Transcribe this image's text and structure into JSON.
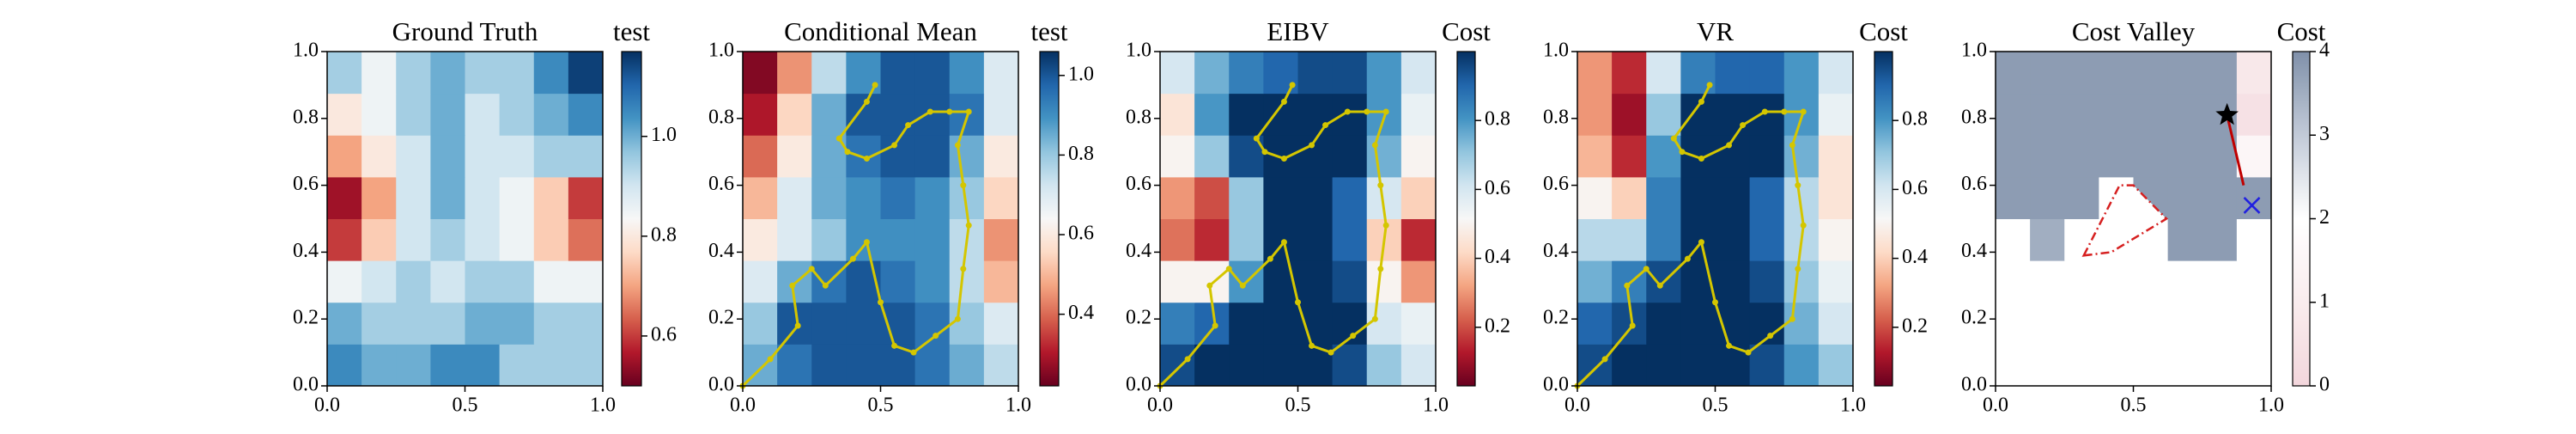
{
  "chart_data": [
    {
      "type": "heatmap",
      "title": "Ground Truth",
      "colorbar_label": "test",
      "colormap": "RdBu",
      "xlim": [
        0,
        1
      ],
      "ylim": [
        0,
        1
      ],
      "xticks": [
        {
          "value": 0,
          "label": "0.0"
        },
        0.5,
        {
          "value": 1,
          "label": "1.0"
        }
      ],
      "yticks": [
        {
          "value": 0,
          "label": "0.0"
        },
        0.2,
        0.4,
        0.6,
        0.8,
        {
          "value": 1,
          "label": "1.0"
        }
      ],
      "clim": [
        0.5,
        1.17
      ],
      "cticks": [
        0.6,
        0.8,
        {
          "value": 1,
          "label": "1.0"
        }
      ],
      "z": [
        [
          1.05,
          1.0,
          1.0,
          1.05,
          1.05,
          0.95,
          0.95,
          0.95
        ],
        [
          1.0,
          0.95,
          0.95,
          0.95,
          1.0,
          1.0,
          0.95,
          0.95
        ],
        [
          0.85,
          0.9,
          0.95,
          0.9,
          0.95,
          0.95,
          0.85,
          0.85
        ],
        [
          0.6,
          0.75,
          0.9,
          0.95,
          0.9,
          0.85,
          0.75,
          0.65
        ],
        [
          0.55,
          0.7,
          0.9,
          1.0,
          0.9,
          0.85,
          0.75,
          0.6
        ],
        [
          0.7,
          0.8,
          0.9,
          1.0,
          0.9,
          0.9,
          0.95,
          0.95
        ],
        [
          0.8,
          0.85,
          0.95,
          1.0,
          0.9,
          0.95,
          1.0,
          1.05
        ],
        [
          0.95,
          0.85,
          0.95,
          1.0,
          0.95,
          0.95,
          1.05,
          1.15
        ]
      ]
    },
    {
      "type": "heatmap",
      "title": "Conditional Mean",
      "colorbar_label": "test",
      "colormap": "RdBu",
      "xlim": [
        0,
        1
      ],
      "ylim": [
        0,
        1
      ],
      "xticks": [
        {
          "value": 0,
          "label": "0.0"
        },
        0.5,
        {
          "value": 1,
          "label": "1.0"
        }
      ],
      "yticks": [
        {
          "value": 0,
          "label": "0.0"
        },
        0.2,
        0.4,
        0.6,
        0.8,
        {
          "value": 1,
          "label": "1.0"
        }
      ],
      "clim": [
        0.22,
        1.06
      ],
      "cticks": [
        0.4,
        0.6,
        0.8,
        {
          "value": 1,
          "label": "1.0"
        }
      ],
      "z": [
        [
          0.85,
          0.95,
          1.0,
          1.0,
          1.0,
          0.95,
          0.85,
          0.75
        ],
        [
          0.8,
          1.0,
          1.0,
          1.0,
          1.0,
          0.95,
          0.8,
          0.7
        ],
        [
          0.7,
          0.85,
          0.95,
          1.0,
          0.95,
          0.9,
          0.75,
          0.5
        ],
        [
          0.6,
          0.7,
          0.8,
          0.9,
          0.9,
          0.9,
          0.75,
          0.45
        ],
        [
          0.5,
          0.7,
          0.85,
          0.9,
          0.95,
          0.9,
          0.8,
          0.55
        ],
        [
          0.4,
          0.6,
          0.85,
          0.95,
          1.0,
          1.0,
          0.85,
          0.6
        ],
        [
          0.3,
          0.55,
          0.85,
          1.0,
          1.0,
          1.0,
          0.95,
          0.7
        ],
        [
          0.25,
          0.45,
          0.75,
          0.9,
          1.0,
          1.0,
          0.9,
          0.7
        ]
      ],
      "path": {
        "color": "#d4c600",
        "x": [
          0,
          0.1,
          0.2,
          0.18,
          0.25,
          0.3,
          0.4,
          0.45,
          0.5,
          0.55,
          0.62,
          0.7,
          0.78,
          0.8,
          0.82,
          0.8,
          0.78,
          0.82,
          0.75,
          0.68,
          0.6,
          0.55,
          0.45,
          0.38,
          0.35,
          0.45,
          0.48
        ],
        "y": [
          0,
          0.08,
          0.18,
          0.3,
          0.35,
          0.3,
          0.38,
          0.43,
          0.25,
          0.12,
          0.1,
          0.15,
          0.2,
          0.35,
          0.48,
          0.6,
          0.72,
          0.82,
          0.82,
          0.82,
          0.78,
          0.72,
          0.68,
          0.7,
          0.74,
          0.85,
          0.9
        ]
      }
    },
    {
      "type": "heatmap",
      "title": "EIBV",
      "colorbar_label": "Cost",
      "colormap": "RdBu",
      "xlim": [
        0,
        1
      ],
      "ylim": [
        0,
        1
      ],
      "xticks": [
        {
          "value": 0,
          "label": "0.0"
        },
        0.5,
        {
          "value": 1,
          "label": "1.0"
        }
      ],
      "yticks": [
        {
          "value": 0,
          "label": "0.0"
        },
        0.2,
        0.4,
        0.6,
        0.8,
        {
          "value": 1,
          "label": "1.0"
        }
      ],
      "clim": [
        0.03,
        1
      ],
      "cticks": [
        0.2,
        0.4,
        0.6,
        0.8
      ],
      "z": [
        [
          0.95,
          1.0,
          1.0,
          1.0,
          1.0,
          0.95,
          0.7,
          0.6
        ],
        [
          0.85,
          0.9,
          1.0,
          1.0,
          1.0,
          1.0,
          0.6,
          0.55
        ],
        [
          0.5,
          0.5,
          0.8,
          1.0,
          1.0,
          0.95,
          0.5,
          0.3
        ],
        [
          0.25,
          0.15,
          0.7,
          1.0,
          1.0,
          0.9,
          0.4,
          0.15
        ],
        [
          0.3,
          0.2,
          0.7,
          1.0,
          1.0,
          0.9,
          0.6,
          0.4
        ],
        [
          0.5,
          0.7,
          0.95,
          1.0,
          1.0,
          1.0,
          0.75,
          0.5
        ],
        [
          0.45,
          0.8,
          1.0,
          1.0,
          1.0,
          1.0,
          0.8,
          0.55
        ],
        [
          0.6,
          0.75,
          0.85,
          0.9,
          0.95,
          0.95,
          0.8,
          0.6
        ]
      ],
      "path": {
        "color": "#d4c600",
        "x": [
          0,
          0.1,
          0.2,
          0.18,
          0.25,
          0.3,
          0.4,
          0.45,
          0.5,
          0.55,
          0.62,
          0.7,
          0.78,
          0.8,
          0.82,
          0.8,
          0.78,
          0.82,
          0.75,
          0.68,
          0.6,
          0.55,
          0.45,
          0.38,
          0.35,
          0.45,
          0.48
        ],
        "y": [
          0,
          0.08,
          0.18,
          0.3,
          0.35,
          0.3,
          0.38,
          0.43,
          0.25,
          0.12,
          0.1,
          0.15,
          0.2,
          0.35,
          0.48,
          0.6,
          0.72,
          0.82,
          0.82,
          0.82,
          0.78,
          0.72,
          0.68,
          0.7,
          0.74,
          0.85,
          0.9
        ]
      }
    },
    {
      "type": "heatmap",
      "title": "VR",
      "colorbar_label": "Cost",
      "colormap": "RdBu",
      "xlim": [
        0,
        1
      ],
      "ylim": [
        0,
        1
      ],
      "xticks": [
        {
          "value": 0,
          "label": "0.0"
        },
        0.5,
        {
          "value": 1,
          "label": "1.0"
        }
      ],
      "yticks": [
        {
          "value": 0,
          "label": "0.0"
        },
        0.2,
        0.4,
        0.6,
        0.8,
        {
          "value": 1,
          "label": "1.0"
        }
      ],
      "clim": [
        0.03,
        1
      ],
      "cticks": [
        0.2,
        0.4,
        0.6,
        0.8
      ],
      "z": [
        [
          0.95,
          1.0,
          1.0,
          1.0,
          1.0,
          0.95,
          0.8,
          0.7
        ],
        [
          0.9,
          0.95,
          1.0,
          1.0,
          1.0,
          1.0,
          0.75,
          0.6
        ],
        [
          0.75,
          0.85,
          0.95,
          1.0,
          1.0,
          0.95,
          0.7,
          0.55
        ],
        [
          0.65,
          0.65,
          0.85,
          1.0,
          1.0,
          0.9,
          0.65,
          0.5
        ],
        [
          0.5,
          0.4,
          0.85,
          1.0,
          1.0,
          0.9,
          0.65,
          0.45
        ],
        [
          0.35,
          0.15,
          0.8,
          1.0,
          1.0,
          1.0,
          0.75,
          0.45
        ],
        [
          0.3,
          0.1,
          0.7,
          1.0,
          1.0,
          1.0,
          0.8,
          0.55
        ],
        [
          0.3,
          0.15,
          0.6,
          0.85,
          0.9,
          0.9,
          0.8,
          0.6
        ]
      ],
      "path": {
        "color": "#d4c600",
        "x": [
          0,
          0.1,
          0.2,
          0.18,
          0.25,
          0.3,
          0.4,
          0.45,
          0.5,
          0.55,
          0.62,
          0.7,
          0.78,
          0.8,
          0.82,
          0.8,
          0.78,
          0.82,
          0.75,
          0.68,
          0.6,
          0.55,
          0.45,
          0.38,
          0.35,
          0.45,
          0.48
        ],
        "y": [
          0,
          0.08,
          0.18,
          0.3,
          0.35,
          0.3,
          0.38,
          0.43,
          0.25,
          0.12,
          0.1,
          0.15,
          0.2,
          0.35,
          0.48,
          0.6,
          0.72,
          0.82,
          0.82,
          0.82,
          0.78,
          0.72,
          0.68,
          0.7,
          0.74,
          0.85,
          0.9
        ]
      }
    },
    {
      "type": "heatmap",
      "title": "Cost Valley",
      "colorbar_label": "Cost",
      "colormap": "valley",
      "xlim": [
        0,
        1
      ],
      "ylim": [
        0,
        1
      ],
      "xticks": [
        {
          "value": 0,
          "label": "0.0"
        },
        0.5,
        {
          "value": 1,
          "label": "1.0"
        }
      ],
      "yticks": [
        {
          "value": 0,
          "label": "0.0"
        },
        0.2,
        0.4,
        0.6,
        0.8,
        {
          "value": 1,
          "label": "1.0"
        }
      ],
      "clim": [
        0,
        4
      ],
      "cticks": [
        0,
        1,
        2,
        3,
        4
      ],
      "z": [
        [
          2,
          2,
          2,
          2,
          2,
          2,
          2,
          2
        ],
        [
          2,
          2,
          2,
          2,
          2,
          2,
          2,
          2
        ],
        [
          2,
          2,
          2,
          2,
          2,
          2,
          2,
          2
        ],
        [
          2,
          3.5,
          2,
          2,
          2,
          3.8,
          3.8,
          2
        ],
        [
          3.8,
          3.8,
          3.8,
          2,
          3.8,
          3.8,
          3.8,
          3.8
        ],
        [
          3.8,
          3.8,
          3.8,
          3.8,
          3.8,
          3.8,
          3.8,
          1.5
        ],
        [
          3.8,
          3.8,
          3.8,
          3.8,
          3.8,
          3.8,
          3.8,
          0.5
        ],
        [
          3.8,
          3.8,
          3.8,
          3.8,
          3.8,
          3.8,
          3.8,
          0.8
        ]
      ],
      "polygon": {
        "color": "#d62020",
        "x": [
          0.32,
          0.45,
          0.5,
          0.62,
          0.42
        ],
        "y": [
          0.39,
          0.6,
          0.6,
          0.5,
          0.4
        ]
      },
      "segment": {
        "color": "#c00000",
        "x": [
          0.84,
          0.9
        ],
        "y": [
          0.81,
          0.6
        ]
      },
      "markers": [
        {
          "x": 0.84,
          "y": 0.81,
          "color": "#000000",
          "marker": "star"
        },
        {
          "x": 0.93,
          "y": 0.54,
          "color": "#2020e0",
          "marker": "x"
        }
      ]
    }
  ]
}
